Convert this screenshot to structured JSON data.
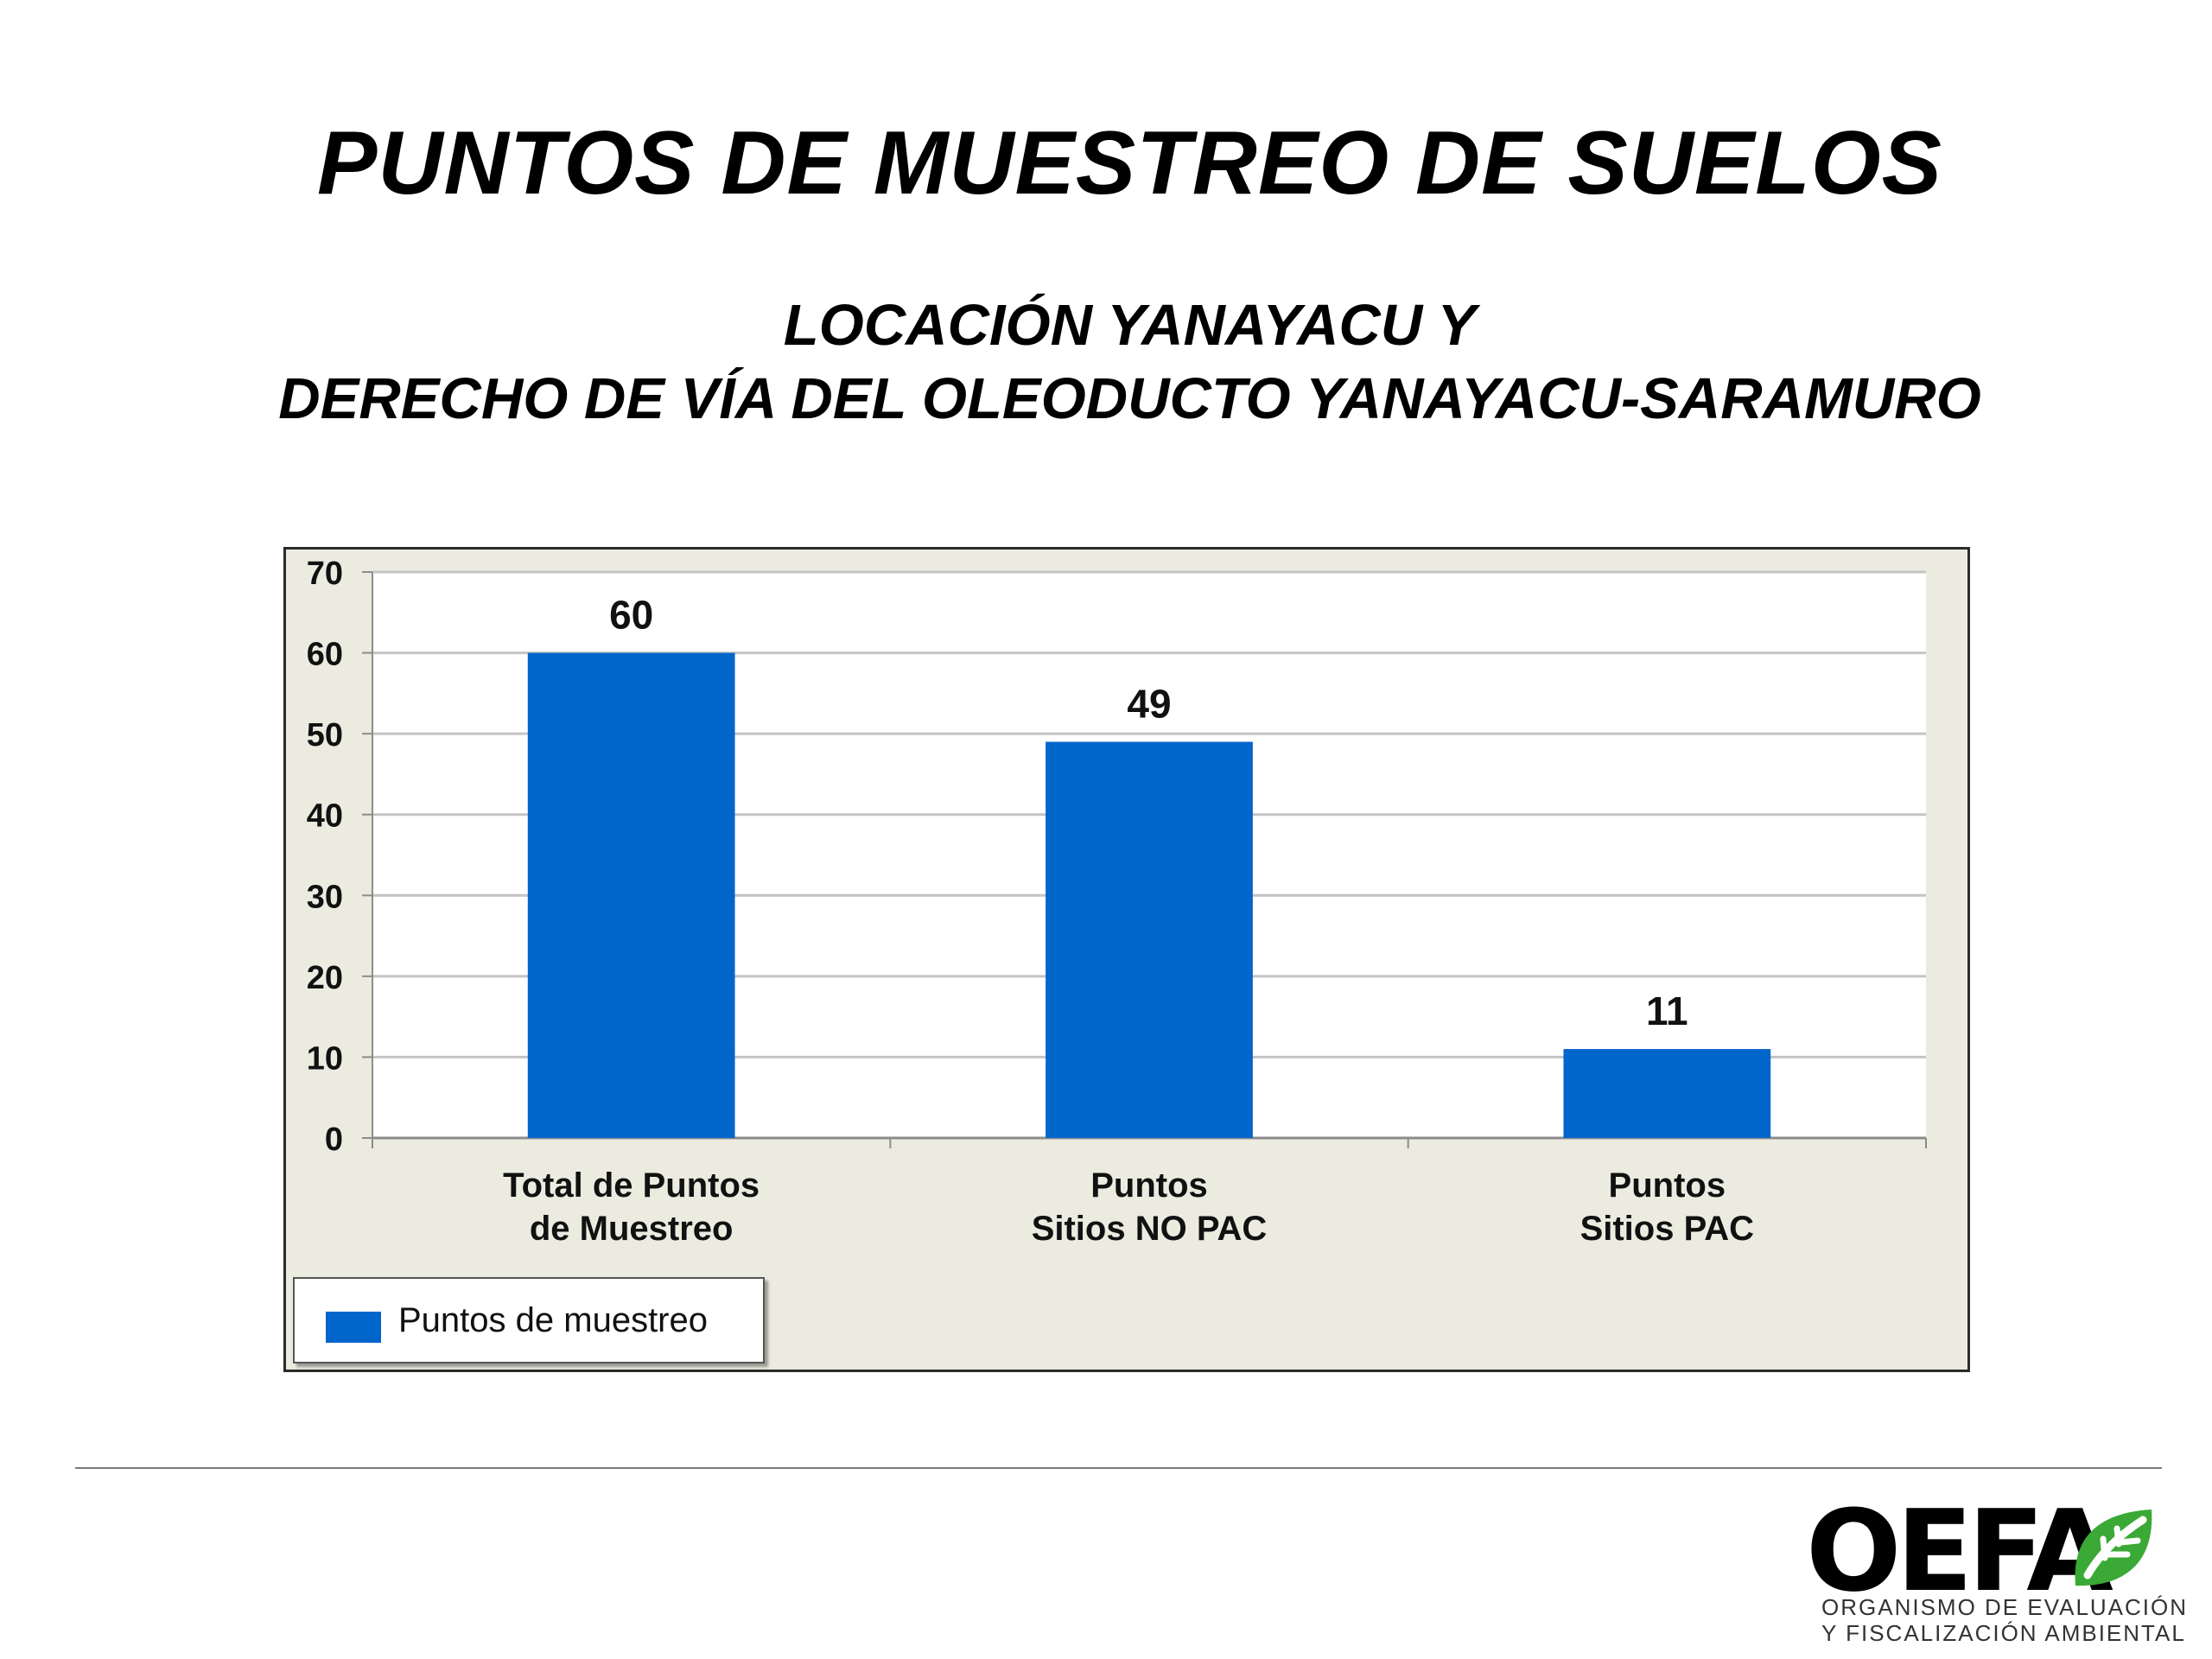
{
  "slide": {
    "title": "PUNTOS DE MUESTREO DE SUELOS",
    "subtitle_line1": "LOCACIÓN YANAYACU Y",
    "subtitle_line2": "DERECHO DE VÍA DEL OLEODUCTO YANAYACU-SARAMURO"
  },
  "chart_data": {
    "type": "bar",
    "categories": [
      [
        "Total de Puntos",
        "de Muestreo"
      ],
      [
        "Puntos",
        "Sitios NO PAC"
      ],
      [
        "Puntos",
        "Sitios PAC"
      ]
    ],
    "series": [
      {
        "name": "Puntos de muestreo",
        "values": [
          60,
          49,
          11
        ],
        "color": "#0066cc"
      }
    ],
    "data_labels": [
      "60",
      "49",
      "11"
    ],
    "ylim": [
      0,
      70
    ],
    "yticks": [
      0,
      10,
      20,
      30,
      40,
      50,
      60,
      70
    ],
    "grid": true,
    "legend_position": "bottom-left",
    "plot_background": "#ffffff",
    "chart_background": "#ecebe0"
  },
  "logo": {
    "wordmark": "OEFA",
    "line1": "ORGANISMO DE EVALUACIÓN",
    "line2": "Y FISCALIZACIÓN AMBIENTAL",
    "icon": "leaf-icon",
    "accent_color": "#3aa935"
  }
}
